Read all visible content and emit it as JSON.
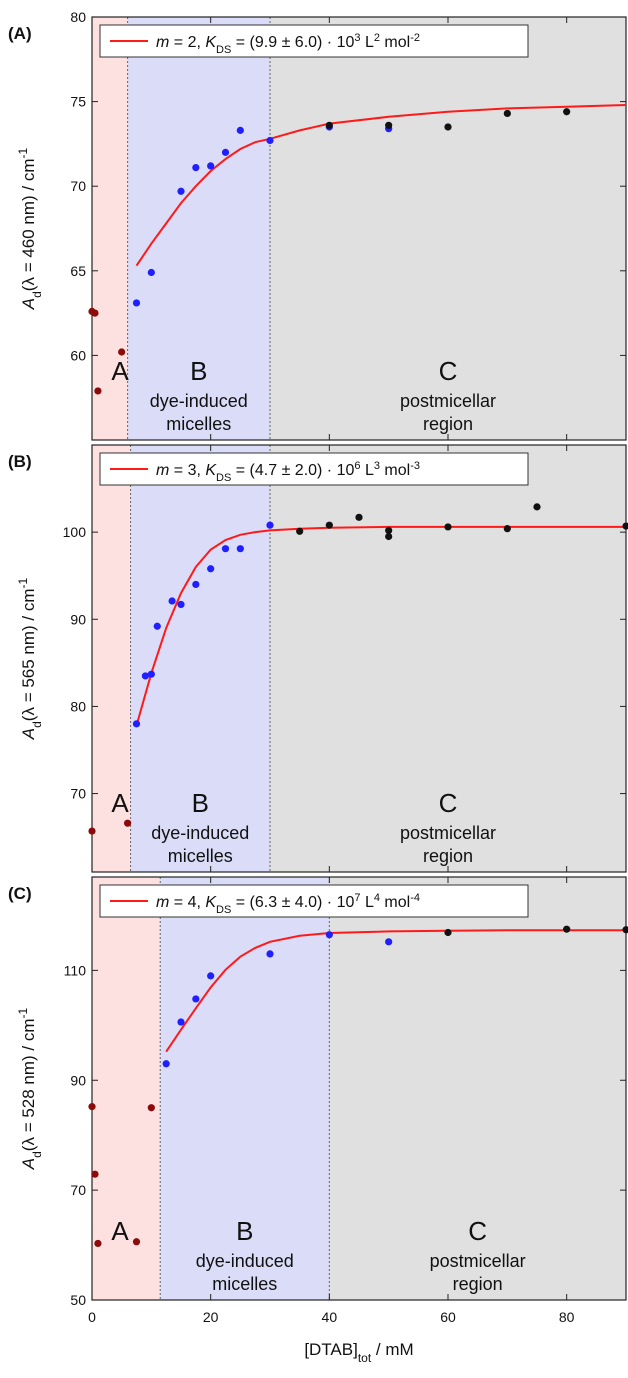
{
  "figure": {
    "xlabel_main": "[DTAB]",
    "xlabel_sub": "tot",
    "xlabel_unit": " / mM",
    "x_ticks": [
      "0",
      "20",
      "40",
      "60",
      "80"
    ]
  },
  "colors": {
    "region_a": "#fde0e0",
    "region_b": "#dadcf8",
    "region_c": "#e0e0e0",
    "fit": "#ff1a1a",
    "series_a": "#8b0a0a",
    "series_b": "#1f1fff",
    "series_c": "#111111"
  },
  "chart_data": [
    {
      "type": "scatter",
      "panel_label": "(A)",
      "ylabel": {
        "pre": "A",
        "sub": "d",
        "mid": "(λ = 460 nm) / cm",
        "sup": "-1"
      },
      "xlim": [
        0,
        90
      ],
      "ylim": [
        55,
        80
      ],
      "y_ticks": [
        60,
        65,
        70,
        75,
        80
      ],
      "boundaries": [
        6,
        30
      ],
      "regions": [
        {
          "letter": "A",
          "desc1": "",
          "desc2": ""
        },
        {
          "letter": "B",
          "desc1": "dye-induced",
          "desc2": "micelles"
        },
        {
          "letter": "C",
          "desc1": "postmicellar",
          "desc2": "region"
        }
      ],
      "legend": {
        "m": "m = 2, ",
        "k": "K",
        "ksub": "DS",
        "eq": " = (9.9 ± 6.0) · 10",
        "exp": "3",
        "unit": " L",
        "unitexp": "2",
        "mol": " mol",
        "molexp": "-2"
      },
      "fit": {
        "x": [
          7.5,
          10,
          12.5,
          15,
          17.5,
          20,
          22.5,
          25,
          27.5,
          30,
          35,
          40,
          50,
          60,
          70,
          80,
          90
        ],
        "y": [
          65.3,
          66.6,
          67.8,
          69.0,
          70.0,
          70.9,
          71.6,
          72.2,
          72.6,
          72.8,
          73.3,
          73.7,
          74.1,
          74.4,
          74.6,
          74.7,
          74.8
        ]
      },
      "series": [
        {
          "region": "A",
          "x": [
            0,
            0.5,
            1,
            5
          ],
          "y": [
            62.6,
            62.5,
            57.9,
            60.2
          ]
        },
        {
          "region": "B",
          "x": [
            7.5,
            10,
            15,
            17.5,
            20,
            22.5,
            25,
            30,
            40,
            50
          ],
          "y": [
            63.1,
            64.9,
            69.7,
            71.1,
            71.2,
            72.0,
            73.3,
            72.7,
            73.5,
            73.4
          ]
        },
        {
          "region": "C",
          "x": [
            40,
            50,
            60,
            70,
            80
          ],
          "y": [
            73.6,
            73.6,
            73.5,
            74.3,
            74.4
          ]
        }
      ]
    },
    {
      "type": "scatter",
      "panel_label": "(B)",
      "ylabel": {
        "pre": "A",
        "sub": "d",
        "mid": "(λ = 565 nm) / cm",
        "sup": "-1"
      },
      "xlim": [
        0,
        90
      ],
      "ylim": [
        61,
        110
      ],
      "y_ticks": [
        70,
        80,
        90,
        100
      ],
      "boundaries": [
        6.5,
        30
      ],
      "regions": [
        {
          "letter": "A",
          "desc1": "",
          "desc2": ""
        },
        {
          "letter": "B",
          "desc1": "dye-induced",
          "desc2": "micelles"
        },
        {
          "letter": "C",
          "desc1": "postmicellar",
          "desc2": "region"
        }
      ],
      "legend": {
        "m": "m = 3, ",
        "k": "K",
        "ksub": "DS",
        "eq": " = (4.7 ± 2.0) · 10",
        "exp": "6",
        "unit": " L",
        "unitexp": "3",
        "mol": " mol",
        "molexp": "-3"
      },
      "fit": {
        "x": [
          7.5,
          10,
          12.5,
          15,
          17.5,
          20,
          22.5,
          25,
          27.5,
          30,
          35,
          40,
          50,
          60,
          70,
          80,
          90
        ],
        "y": [
          77.8,
          83.8,
          89.0,
          93.0,
          96.0,
          98.0,
          99.1,
          99.7,
          100.0,
          100.2,
          100.4,
          100.5,
          100.6,
          100.6,
          100.6,
          100.6,
          100.6
        ]
      },
      "series": [
        {
          "region": "A",
          "x": [
            0,
            6
          ],
          "y": [
            65.7,
            66.6
          ]
        },
        {
          "region": "B",
          "x": [
            7.5,
            9,
            10,
            11,
            13.5,
            15,
            17.5,
            20,
            22.5,
            25,
            30
          ],
          "y": [
            78.0,
            83.5,
            83.7,
            89.2,
            92.1,
            91.7,
            94.0,
            95.8,
            98.1,
            98.1,
            100.8
          ]
        },
        {
          "region": "C",
          "x": [
            35,
            40,
            45,
            50,
            50,
            60,
            70,
            75,
            90
          ],
          "y": [
            100.1,
            100.8,
            101.7,
            100.2,
            99.5,
            100.6,
            100.4,
            102.9,
            100.7
          ]
        }
      ]
    },
    {
      "type": "scatter",
      "panel_label": "(C)",
      "ylabel": {
        "pre": "A",
        "sub": "d",
        "mid": "(λ = 528 nm) / cm",
        "sup": "-1"
      },
      "xlim": [
        0,
        90
      ],
      "ylim": [
        50,
        127
      ],
      "y_ticks": [
        50,
        70,
        90,
        110
      ],
      "boundaries": [
        11.5,
        40
      ],
      "regions": [
        {
          "letter": "A",
          "desc1": "",
          "desc2": ""
        },
        {
          "letter": "B",
          "desc1": "dye-induced",
          "desc2": "micelles"
        },
        {
          "letter": "C",
          "desc1": "postmicellar",
          "desc2": "region"
        }
      ],
      "legend": {
        "m": "m = 4, ",
        "k": "K",
        "ksub": "DS",
        "eq": " = (6.3 ± 4.0) · 10",
        "exp": "7",
        "unit": " L",
        "unitexp": "4",
        "mol": " mol",
        "molexp": "-4"
      },
      "fit": {
        "x": [
          12.5,
          15,
          17.5,
          20,
          22.5,
          25,
          27.5,
          30,
          35,
          40,
          50,
          60,
          70,
          80,
          90
        ],
        "y": [
          95.2,
          99.2,
          103.1,
          106.9,
          110.1,
          112.5,
          114.1,
          115.2,
          116.3,
          116.8,
          117.1,
          117.2,
          117.3,
          117.3,
          117.3
        ]
      },
      "series": [
        {
          "region": "A",
          "x": [
            0,
            0.5,
            1,
            7.5,
            10
          ],
          "y": [
            85.2,
            72.9,
            60.3,
            60.6,
            85.0
          ]
        },
        {
          "region": "B",
          "x": [
            12.5,
            15,
            17.5,
            20,
            30,
            40,
            50
          ],
          "y": [
            93.0,
            100.6,
            104.8,
            109.0,
            113.0,
            116.5,
            115.2
          ]
        },
        {
          "region": "C",
          "x": [
            60,
            80,
            90
          ],
          "y": [
            116.9,
            117.5,
            117.4
          ]
        }
      ]
    }
  ]
}
